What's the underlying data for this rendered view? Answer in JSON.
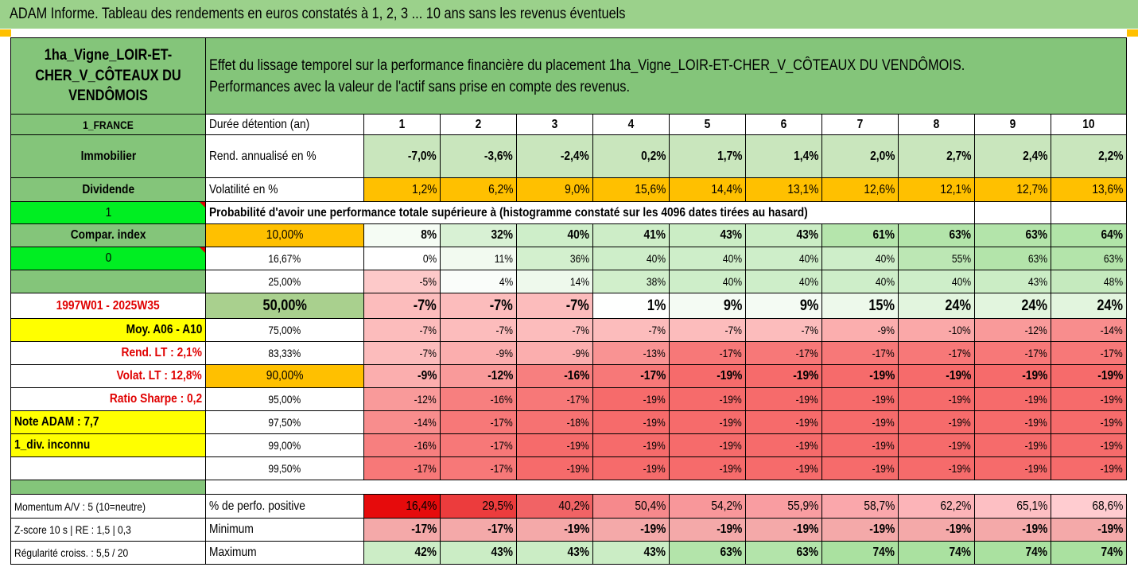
{
  "title": "ADAM Informe. Tableau des rendements en euros constatés à 1, 2, 3 ... 10 ans sans les revenus éventuels",
  "asset_name": "1ha_Vigne_LOIR-ET-CHER_V_CÔTEAUX DU VENDÔMOIS",
  "description_line1": "Effet du lissage temporel sur la performance financière du placement 1ha_Vigne_LOIR-ET-CHER_V_CÔTEAUX DU VENDÔMOIS.",
  "description_line2": "Performances avec la valeur de l'actif sans prise en compte des revenus.",
  "country": "1_FRANCE",
  "holding_label": "Durée détention (an)",
  "years": [
    "1",
    "2",
    "3",
    "4",
    "5",
    "6",
    "7",
    "8",
    "9",
    "10"
  ],
  "category": "Immobilier",
  "rend_label": "Rend. annualisé en %",
  "rend_values": [
    "-7,0%",
    "-3,6%",
    "-2,4%",
    "0,2%",
    "1,7%",
    "1,4%",
    "2,0%",
    "2,7%",
    "2,4%",
    "2,2%"
  ],
  "dividend_label": "Dividende",
  "vol_label": "Volatilité en %",
  "vol_values": [
    "1,2%",
    "6,2%",
    "9,0%",
    "15,6%",
    "14,4%",
    "13,1%",
    "12,6%",
    "12,1%",
    "12,7%",
    "13,6%"
  ],
  "dividend_flag": "1",
  "prob_label": "Probabilité d'avoir une performance totale supérieure à (histogramme constaté sur les 4096 dates tirées au hasard)",
  "left_labels": {
    "compar": "Compar. index",
    "index_flag": "0",
    "period": "1997W01 - 2025W35",
    "moy": "Moy. A06 - A10",
    "rend_lt": "Rend. LT :    2,1%",
    "volat_lt": "Volat. LT :   12,8%",
    "sharpe": "Ratio Sharpe :    0,2",
    "note": "Note ADAM : 7,7",
    "div": "1_div. inconnu"
  },
  "quantile_rows": [
    {
      "p": "10,00%",
      "v": [
        "8%",
        "32%",
        "40%",
        "41%",
        "43%",
        "43%",
        "61%",
        "63%",
        "63%",
        "64%"
      ]
    },
    {
      "p": "16,67%",
      "v": [
        "0%",
        "11%",
        "36%",
        "40%",
        "40%",
        "40%",
        "40%",
        "55%",
        "63%",
        "63%"
      ]
    },
    {
      "p": "25,00%",
      "v": [
        "-5%",
        "4%",
        "14%",
        "38%",
        "40%",
        "40%",
        "40%",
        "40%",
        "43%",
        "48%"
      ]
    },
    {
      "p": "50,00%",
      "v": [
        "-7%",
        "-7%",
        "-7%",
        "1%",
        "9%",
        "9%",
        "15%",
        "24%",
        "24%",
        "24%"
      ]
    },
    {
      "p": "75,00%",
      "v": [
        "-7%",
        "-7%",
        "-7%",
        "-7%",
        "-7%",
        "-7%",
        "-9%",
        "-10%",
        "-12%",
        "-14%"
      ]
    },
    {
      "p": "83,33%",
      "v": [
        "-7%",
        "-9%",
        "-9%",
        "-13%",
        "-17%",
        "-17%",
        "-17%",
        "-17%",
        "-17%",
        "-17%"
      ]
    },
    {
      "p": "90,00%",
      "v": [
        "-9%",
        "-12%",
        "-16%",
        "-17%",
        "-19%",
        "-19%",
        "-19%",
        "-19%",
        "-19%",
        "-19%"
      ]
    },
    {
      "p": "95,00%",
      "v": [
        "-12%",
        "-16%",
        "-17%",
        "-19%",
        "-19%",
        "-19%",
        "-19%",
        "-19%",
        "-19%",
        "-19%"
      ]
    },
    {
      "p": "97,50%",
      "v": [
        "-14%",
        "-17%",
        "-18%",
        "-19%",
        "-19%",
        "-19%",
        "-19%",
        "-19%",
        "-19%",
        "-19%"
      ]
    },
    {
      "p": "99,00%",
      "v": [
        "-16%",
        "-17%",
        "-19%",
        "-19%",
        "-19%",
        "-19%",
        "-19%",
        "-19%",
        "-19%",
        "-19%"
      ]
    },
    {
      "p": "99,50%",
      "v": [
        "-17%",
        "-17%",
        "-19%",
        "-19%",
        "-19%",
        "-19%",
        "-19%",
        "-19%",
        "-19%",
        "-19%"
      ]
    }
  ],
  "momentum_label": "Momentum A/V : 5 (10=neutre)",
  "pos_label": "% de perfo. positive",
  "pos_values": [
    "16,4%",
    "29,5%",
    "40,2%",
    "50,4%",
    "54,2%",
    "55,9%",
    "58,7%",
    "62,2%",
    "65,1%",
    "68,6%"
  ],
  "zscore_label": "Z-score 10 s  |  RE : 1,5  |  0,3",
  "min_label": "Minimum",
  "min_values": [
    "-17%",
    "-17%",
    "-19%",
    "-19%",
    "-19%",
    "-19%",
    "-19%",
    "-19%",
    "-19%",
    "-19%"
  ],
  "regul_label": "Régularité croiss. : 5,5 / 20",
  "max_label": "Maximum",
  "max_values": [
    "42%",
    "43%",
    "43%",
    "43%",
    "63%",
    "63%",
    "74%",
    "74%",
    "74%",
    "74%"
  ],
  "colors": {
    "header_green": "#84c57a",
    "orange": "#ffc000",
    "yellow": "#ffff00",
    "bright_green": "#00ee22",
    "red_text": "#e00000"
  }
}
